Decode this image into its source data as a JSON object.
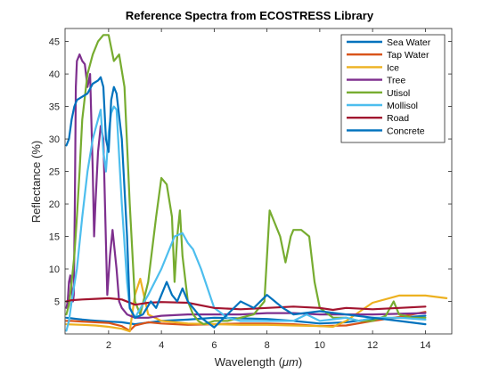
{
  "chart_data": {
    "type": "line",
    "title": "Reference Spectra from ECOSTRESS Library",
    "xlabel_prefix": "Wavelength  (",
    "xlabel_unit": "μm",
    "xlabel_suffix": ")",
    "ylabel": "Reflectance (%)",
    "xlim": [
      0.35,
      15.0
    ],
    "ylim": [
      0,
      47
    ],
    "xticks": [
      2,
      4,
      6,
      8,
      10,
      12,
      14
    ],
    "yticks": [
      5,
      10,
      15,
      20,
      25,
      30,
      35,
      40,
      45
    ],
    "grid": false,
    "legend_position": "top-right",
    "series": [
      {
        "name": "Sea Water",
        "color": "#0072BD",
        "x": [
          0.4,
          0.6,
          0.8,
          1.0,
          1.3,
          1.6,
          2.0,
          2.5,
          3.0,
          4.0,
          5.0,
          6.0,
          7.0,
          8.0,
          9.0,
          10.0,
          11.0,
          12.0,
          13.0,
          14.0
        ],
        "y": [
          2.5,
          2.4,
          2.3,
          2.2,
          2.1,
          2.0,
          1.9,
          1.8,
          1.5,
          2.0,
          2.2,
          2.5,
          2.4,
          2.3,
          2.0,
          1.6,
          1.8,
          2.3,
          2.5,
          2.8
        ]
      },
      {
        "name": "Tap Water",
        "color": "#D95319",
        "x": [
          0.4,
          0.6,
          1.0,
          1.5,
          2.0,
          2.5,
          2.8,
          3.0,
          3.5,
          4.0,
          5.0,
          6.0,
          7.0,
          8.0,
          9.0,
          10.0,
          11.0,
          12.0,
          13.0,
          14.0
        ],
        "y": [
          2.0,
          2.0,
          1.9,
          1.8,
          1.7,
          1.2,
          0.5,
          1.3,
          1.8,
          1.6,
          1.4,
          1.5,
          1.6,
          1.6,
          1.5,
          1.2,
          1.3,
          2.0,
          2.6,
          3.4
        ]
      },
      {
        "name": "Ice",
        "color": "#EDB120",
        "x": [
          0.4,
          1.0,
          1.5,
          2.0,
          2.5,
          2.8,
          3.0,
          3.2,
          3.5,
          4.0,
          5.0,
          6.0,
          7.0,
          8.0,
          9.0,
          10.0,
          10.5,
          11.0,
          12.0,
          13.0,
          14.0,
          14.8
        ],
        "y": [
          1.5,
          1.4,
          1.3,
          1.1,
          0.8,
          0.4,
          6.0,
          8.5,
          3.0,
          2.0,
          1.6,
          1.5,
          1.4,
          1.4,
          1.3,
          1.2,
          1.1,
          2.0,
          4.8,
          5.9,
          5.9,
          5.5
        ]
      },
      {
        "name": "Tree",
        "color": "#7E2F8E",
        "x": [
          0.4,
          0.45,
          0.5,
          0.55,
          0.6,
          0.65,
          0.68,
          0.72,
          0.76,
          0.8,
          0.9,
          1.0,
          1.1,
          1.2,
          1.3,
          1.4,
          1.45,
          1.5,
          1.6,
          1.7,
          1.8,
          1.9,
          1.95,
          2.05,
          2.15,
          2.3,
          2.4,
          2.5,
          2.7,
          3.0,
          3.5,
          4.0,
          5.0,
          6.0,
          7.0,
          8.0,
          9.0,
          10.0,
          11.0,
          12.0,
          13.0,
          14.0
        ],
        "y": [
          4.0,
          5.0,
          8.0,
          9.0,
          7.0,
          5.0,
          6.0,
          20.0,
          38.0,
          42.0,
          43.0,
          42.0,
          41.5,
          38.0,
          40.0,
          25.0,
          15.0,
          20.0,
          28.0,
          32.0,
          30.0,
          14.0,
          6.0,
          12.0,
          16.0,
          10.0,
          5.0,
          4.0,
          3.0,
          2.5,
          2.5,
          2.8,
          3.0,
          3.0,
          3.0,
          3.2,
          3.2,
          3.0,
          3.0,
          3.0,
          3.1,
          3.2
        ]
      },
      {
        "name": "Utisol",
        "color": "#77AC30",
        "x": [
          0.4,
          0.5,
          0.6,
          0.7,
          0.8,
          0.9,
          1.0,
          1.2,
          1.4,
          1.6,
          1.8,
          2.0,
          2.2,
          2.4,
          2.6,
          2.8,
          3.0,
          3.2,
          3.5,
          3.8,
          4.0,
          4.2,
          4.4,
          4.5,
          4.6,
          4.7,
          4.8,
          5.0,
          5.2,
          5.4,
          5.6,
          6.0,
          6.5,
          7.0,
          7.5,
          7.9,
          8.1,
          8.3,
          8.5,
          8.7,
          8.9,
          9.0,
          9.3,
          9.6,
          9.8,
          10.0,
          10.5,
          11.0,
          11.5,
          12.0,
          12.5,
          12.8,
          13.0,
          13.5,
          14.0
        ],
        "y": [
          3.0,
          4.5,
          8.0,
          12.0,
          18.0,
          25.0,
          33.0,
          40.0,
          43.0,
          45.0,
          46.0,
          46.0,
          42.0,
          43.0,
          38.0,
          20.0,
          5.0,
          3.0,
          8.0,
          18.0,
          24.0,
          23.0,
          18.0,
          8.0,
          15.0,
          19.0,
          12.0,
          5.0,
          3.0,
          2.0,
          1.5,
          2.0,
          2.0,
          2.5,
          3.0,
          5.0,
          19.0,
          17.0,
          15.0,
          11.0,
          15.0,
          16.0,
          16.0,
          15.0,
          8.0,
          4.0,
          2.5,
          2.5,
          2.0,
          2.0,
          2.8,
          5.0,
          3.0,
          2.5,
          2.5
        ]
      },
      {
        "name": "Mollisol",
        "color": "#4DBEEE",
        "x": [
          0.4,
          0.5,
          0.6,
          0.8,
          1.0,
          1.2,
          1.4,
          1.6,
          1.7,
          1.8,
          1.9,
          2.0,
          2.1,
          2.2,
          2.3,
          2.5,
          2.7,
          2.8,
          3.0,
          3.5,
          4.0,
          4.5,
          4.8,
          5.0,
          5.2,
          5.5,
          6.0,
          6.5,
          7.0,
          8.0,
          9.0,
          9.5,
          10.0,
          11.0,
          11.5,
          12.0,
          13.0,
          14.0
        ],
        "y": [
          0.5,
          2.0,
          5.0,
          10.0,
          18.0,
          25.0,
          30.0,
          33.0,
          34.5,
          28.0,
          25.0,
          31.0,
          34.0,
          35.0,
          34.5,
          20.0,
          8.0,
          4.0,
          2.5,
          6.0,
          10.0,
          15.0,
          15.5,
          14.0,
          13.0,
          10.0,
          4.0,
          2.5,
          2.0,
          2.0,
          2.0,
          3.0,
          2.0,
          2.5,
          2.0,
          2.5,
          2.5,
          2.2
        ]
      },
      {
        "name": "Road",
        "color": "#A2142F",
        "x": [
          0.4,
          0.6,
          1.0,
          1.5,
          2.0,
          2.5,
          3.0,
          3.5,
          4.0,
          5.0,
          6.0,
          7.0,
          8.0,
          9.0,
          10.0,
          10.5,
          11.0,
          12.0,
          13.0,
          14.0
        ],
        "y": [
          5.0,
          5.2,
          5.3,
          5.4,
          5.5,
          5.3,
          4.5,
          4.8,
          4.9,
          4.8,
          4.0,
          3.8,
          4.0,
          4.2,
          4.0,
          3.7,
          4.0,
          3.8,
          4.0,
          4.2
        ]
      },
      {
        "name": "Concrete",
        "color": "#0072BD",
        "x": [
          0.4,
          0.5,
          0.6,
          0.7,
          0.8,
          1.0,
          1.2,
          1.4,
          1.6,
          1.7,
          1.8,
          1.9,
          2.0,
          2.1,
          2.2,
          2.3,
          2.5,
          2.7,
          2.8,
          3.0,
          3.3,
          3.6,
          3.8,
          4.0,
          4.2,
          4.4,
          4.6,
          4.8,
          5.0,
          5.5,
          6.0,
          6.5,
          7.0,
          7.5,
          8.0,
          8.3,
          8.6,
          9.0,
          10.0,
          11.0,
          12.0,
          13.0,
          14.0
        ],
        "y": [
          29.0,
          30.0,
          33.0,
          35.0,
          36.0,
          36.5,
          37.0,
          38.5,
          39.0,
          39.5,
          38.0,
          30.0,
          28.0,
          36.0,
          38.0,
          37.0,
          30.0,
          15.0,
          4.0,
          2.5,
          3.0,
          5.0,
          4.0,
          6.0,
          8.0,
          6.0,
          5.0,
          7.0,
          5.0,
          2.5,
          1.0,
          3.0,
          5.0,
          4.0,
          6.0,
          5.0,
          4.0,
          3.0,
          3.5,
          3.0,
          2.5,
          2.0,
          1.5
        ]
      }
    ]
  }
}
